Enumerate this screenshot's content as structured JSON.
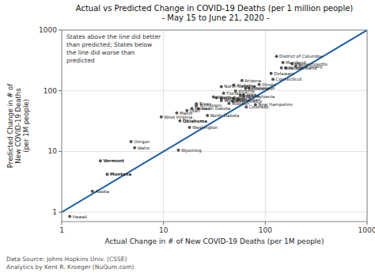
{
  "chart_data": {
    "type": "scatter",
    "title": "Actual vs Predicted Change in COVID-19 Deaths (per 1 million people)\n - May 15 to June 21, 2020 -",
    "x_label": "Actual Change in # of New COVID-19 Deaths (per 1M people)",
    "y_label": "Predicted Change in # of\nNew COVID-19 Deaths\n(per 1M people)",
    "annotation": "States above the line did better\nthan predicted; States below\nthe line did worse than\npredicted",
    "footnote": "Data Source: Johns Hopkins Univ. (CSSE)\nAnalytics by Kent R. Kroeger (NuQum.com)",
    "log": true,
    "grid": true,
    "xlim": [
      1,
      1000
    ],
    "ylim": [
      0.7,
      1000
    ],
    "xticks": [
      1,
      10,
      100,
      1000
    ],
    "yticks": [
      1,
      10,
      100,
      1000
    ],
    "series": [
      {
        "type": "line",
        "color": "#1f5fa6",
        "x": [
          1,
          1000
        ],
        "values": [
          1,
          1000
        ]
      },
      {
        "type": "scatter",
        "color": "#555555",
        "labels": [
          "Hawaii",
          "Alaska",
          "Montana",
          "Vermont",
          "Idaho",
          "Oregon",
          "Wyoming",
          "Washington",
          "Oklahoma",
          "West Virginia",
          "North Dakota",
          "Maine",
          "Utah",
          "Kansas",
          "South Dakota",
          "Colorado",
          "Tennessee",
          "New Hampshire",
          "Texas",
          "Missouri",
          "New Mexico",
          "Wisconsin",
          "Michigan",
          "Ohio",
          "Georgia",
          "South Carolina",
          "Arkansas",
          "Pennsylvania",
          "Indiana",
          "Iowa",
          "Florida",
          "Virginia",
          "Louisiana",
          "Mississippi",
          "North Carolina",
          "Alabama",
          "Illinois",
          "Arizona",
          "Connecticut",
          "Delaware",
          "New York",
          "Rhode Island",
          "New Jersey",
          "Massachusetts",
          "Maryland",
          "District of Columbia"
        ],
        "bold": [
          false,
          false,
          true,
          true,
          false,
          false,
          false,
          false,
          true,
          false,
          false,
          false,
          false,
          false,
          false,
          false,
          false,
          false,
          false,
          false,
          false,
          false,
          false,
          false,
          false,
          false,
          false,
          false,
          false,
          false,
          false,
          false,
          false,
          false,
          false,
          false,
          false,
          false,
          false,
          false,
          false,
          false,
          false,
          false,
          false,
          false
        ],
        "x": [
          1.2,
          2.0,
          2.8,
          2.4,
          5.2,
          4.8,
          14.0,
          18.0,
          14.5,
          9.5,
          27.0,
          13.5,
          17.0,
          19.0,
          22.0,
          65.0,
          21.0,
          80.0,
          21.0,
          44.0,
          48.0,
          37.0,
          54.0,
          49.0,
          37.0,
          33.0,
          31.0,
          61.0,
          57.0,
          61.0,
          39.0,
          51.0,
          64.0,
          69.0,
          37.0,
          49.0,
          87.0,
          59.0,
          119.0,
          114.0,
          144.0,
          159.0,
          199.0,
          184.0,
          149.0,
          129.0
        ],
        "values": [
          0.85,
          2.2,
          4.2,
          7.0,
          11.5,
          14.5,
          10.5,
          25.0,
          32.0,
          37.0,
          39.0,
          43.0,
          47.0,
          51.0,
          51.0,
          54.0,
          57.0,
          59.0,
          61.0,
          62.0,
          67.0,
          69.0,
          71.0,
          74.0,
          74.0,
          77.0,
          79.0,
          81.0,
          84.0,
          87.0,
          91.0,
          99.0,
          109.0,
          111.0,
          117.0,
          124.0,
          127.0,
          147.0,
          154.0,
          194.0,
          238.0,
          238.0,
          253.0,
          278.0,
          293.0,
          368.0
        ]
      }
    ]
  }
}
